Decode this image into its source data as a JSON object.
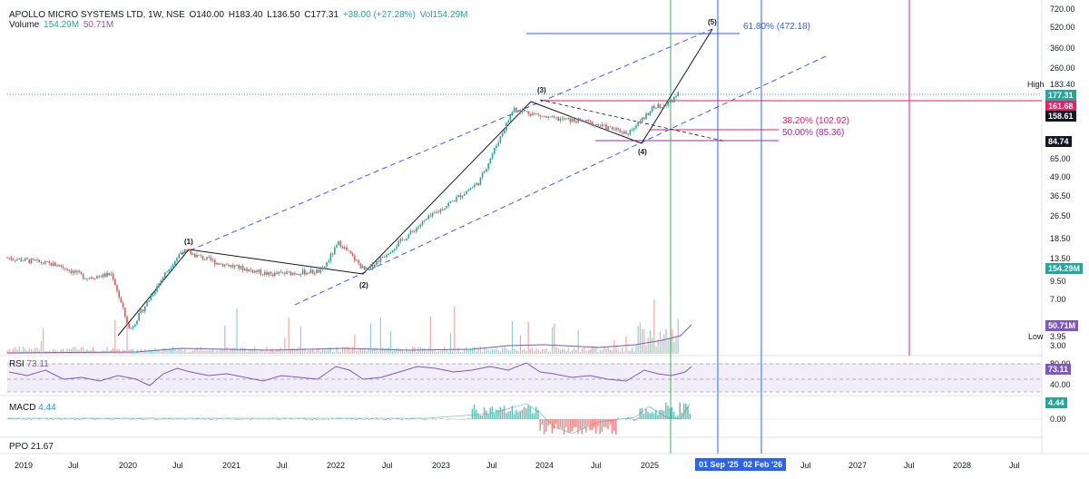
{
  "header": {
    "symbol": "APOLLO MICRO SYSTEMS LTD, 1W, NSE",
    "open": "O140.00",
    "high": "H183.40",
    "low": "L136.50",
    "close": "C177.31",
    "change": "+38.00 (+27.28%)",
    "vol": "Vol154.29M",
    "volume_label": "Volume",
    "volume_value": "154.29M",
    "volume_ma": "50.71M"
  },
  "rsi": {
    "label": "RSI",
    "value": "73.11",
    "ticks": [
      "80.00",
      "40.00"
    ],
    "badge": "73.11"
  },
  "macd": {
    "label": "MACD",
    "value": "4.44",
    "tick": "0.00",
    "badge": "4.44"
  },
  "ppo": {
    "label": "PPO",
    "value": "21.67"
  },
  "price_axis": {
    "ticks": [
      "720.00",
      "520.00",
      "360.00",
      "260.00",
      "183.40",
      "65.00",
      "49.00",
      "36.50",
      "26.50",
      "18.50",
      "13.50",
      "9.50",
      "7.00",
      "3.95",
      "3.00"
    ],
    "high_label": "High",
    "low_label": "Low",
    "badges": {
      "last": "177.31",
      "fib_level": "161.68",
      "prev": "158.61",
      "support": "84.74",
      "volume": "154.29M",
      "volume_ma": "50.71M"
    }
  },
  "time_axis": {
    "labels": [
      "2019",
      "Jul",
      "2020",
      "Jul",
      "2021",
      "Jul",
      "2022",
      "Jul",
      "2023",
      "Jul",
      "2024",
      "Jul",
      "2025",
      "Jul",
      "2027",
      "Jul",
      "2028",
      "Jul"
    ],
    "extra_jul": "Jul",
    "date_badges": [
      "01 Sep '25",
      "02 Feb '26"
    ]
  },
  "annotations": {
    "fib_618": "61.80% (472.18)",
    "fib_382": "38.20% (102.92)",
    "fib_50": "50.00% (85.36)",
    "waves": [
      "(1)",
      "(2)",
      "(3)",
      "(4)",
      "(5)"
    ]
  },
  "colors": {
    "up": "#26a69a",
    "down": "#ef5350",
    "channel": "#3d5afe",
    "wave_line": "#131722",
    "fib_blue": "#2962ff",
    "fib_pink": "#e91e63",
    "fib_purple": "#9c27b0",
    "rsi_line": "#7e57c2",
    "vertical_green": "#4caf50",
    "vertical_red": "#e91e63"
  },
  "chart_data": {
    "type": "candlestick",
    "title": "APOLLO MICRO SYSTEMS LTD, 1W, NSE",
    "scale": "log",
    "x_range": [
      "2019",
      "2028-Jul"
    ],
    "y_range": [
      3,
      720
    ],
    "ohlc_last": {
      "open": 140.0,
      "high": 183.4,
      "low": 136.5,
      "close": 177.31,
      "change": 38.0,
      "change_pct": 27.28
    },
    "price_path": [
      {
        "x": "2019-01",
        "y": 13.5
      },
      {
        "x": "2019-07",
        "y": 12.0
      },
      {
        "x": "2019-10",
        "y": 10.0
      },
      {
        "x": "2020-01",
        "y": 10.5
      },
      {
        "x": "2020-03",
        "y": 4.5
      },
      {
        "x": "2020-07",
        "y": 10.5
      },
      {
        "x": "2020-09",
        "y": 15.0
      },
      {
        "x": "2021-01",
        "y": 12.5
      },
      {
        "x": "2021-07",
        "y": 10.5
      },
      {
        "x": "2022-01",
        "y": 11.0
      },
      {
        "x": "2022-03",
        "y": 17.0
      },
      {
        "x": "2022-06",
        "y": 11.0
      },
      {
        "x": "2023-01",
        "y": 24.0
      },
      {
        "x": "2023-07",
        "y": 42.0
      },
      {
        "x": "2023-11",
        "y": 128.0
      },
      {
        "x": "2024-03",
        "y": 110.0
      },
      {
        "x": "2024-07",
        "y": 105.0
      },
      {
        "x": "2024-12",
        "y": 88.0
      },
      {
        "x": "2025-03",
        "y": 130.0
      },
      {
        "x": "2025-05",
        "y": 140.0
      },
      {
        "x": "2025-06",
        "y": 177.31
      }
    ],
    "wave_points": [
      {
        "label": "(1)",
        "x": "2020-09",
        "y": 16.0
      },
      {
        "label": "(2)",
        "x": "2022-06",
        "y": 11.0
      },
      {
        "label": "(3)",
        "x": "2023-11",
        "y": 130.0
      },
      {
        "label": "(4)",
        "x": "2024-12",
        "y": 85.0
      },
      {
        "label": "(5)",
        "x": "2025-09",
        "y": 560.0
      }
    ],
    "fib_levels": [
      {
        "label": "61.80%",
        "value": 472.18
      },
      {
        "label": "38.20%",
        "value": 102.92
      },
      {
        "label": "50.00%",
        "value": 85.36
      }
    ],
    "volume_last": "154.29M",
    "volume_ma": "50.71M",
    "rsi_last": 73.11,
    "macd_last": 4.44,
    "ppo_last": 21.67
  }
}
